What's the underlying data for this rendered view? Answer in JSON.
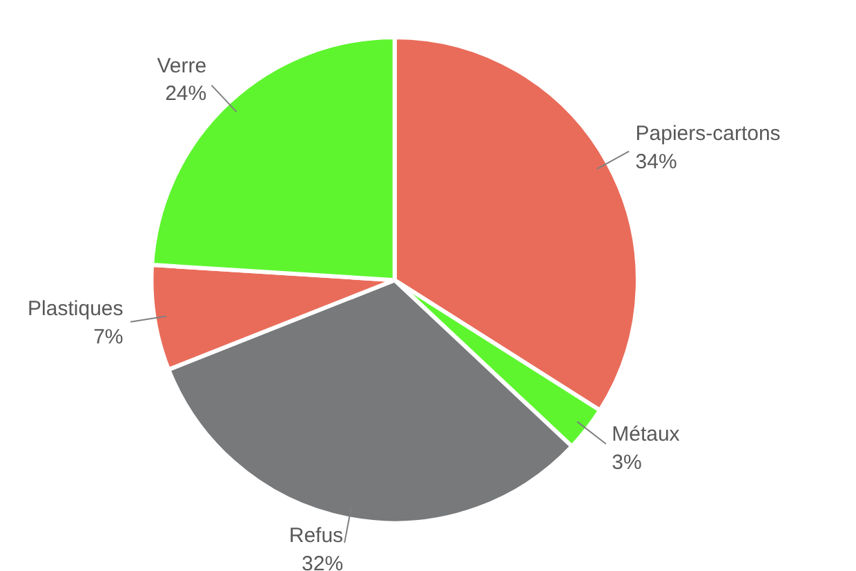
{
  "chart_data": {
    "type": "pie",
    "categories": [
      "Papiers-cartons",
      "Métaux",
      "Refus",
      "Plastiques",
      "Verre"
    ],
    "values": [
      34,
      3,
      32,
      7,
      24
    ],
    "value_labels": [
      "34%",
      "3%",
      "32%",
      "7%",
      "24%"
    ],
    "colors": [
      "#e96c5a",
      "#5ef52f",
      "#78797b",
      "#e96c5a",
      "#5ef52f"
    ]
  }
}
